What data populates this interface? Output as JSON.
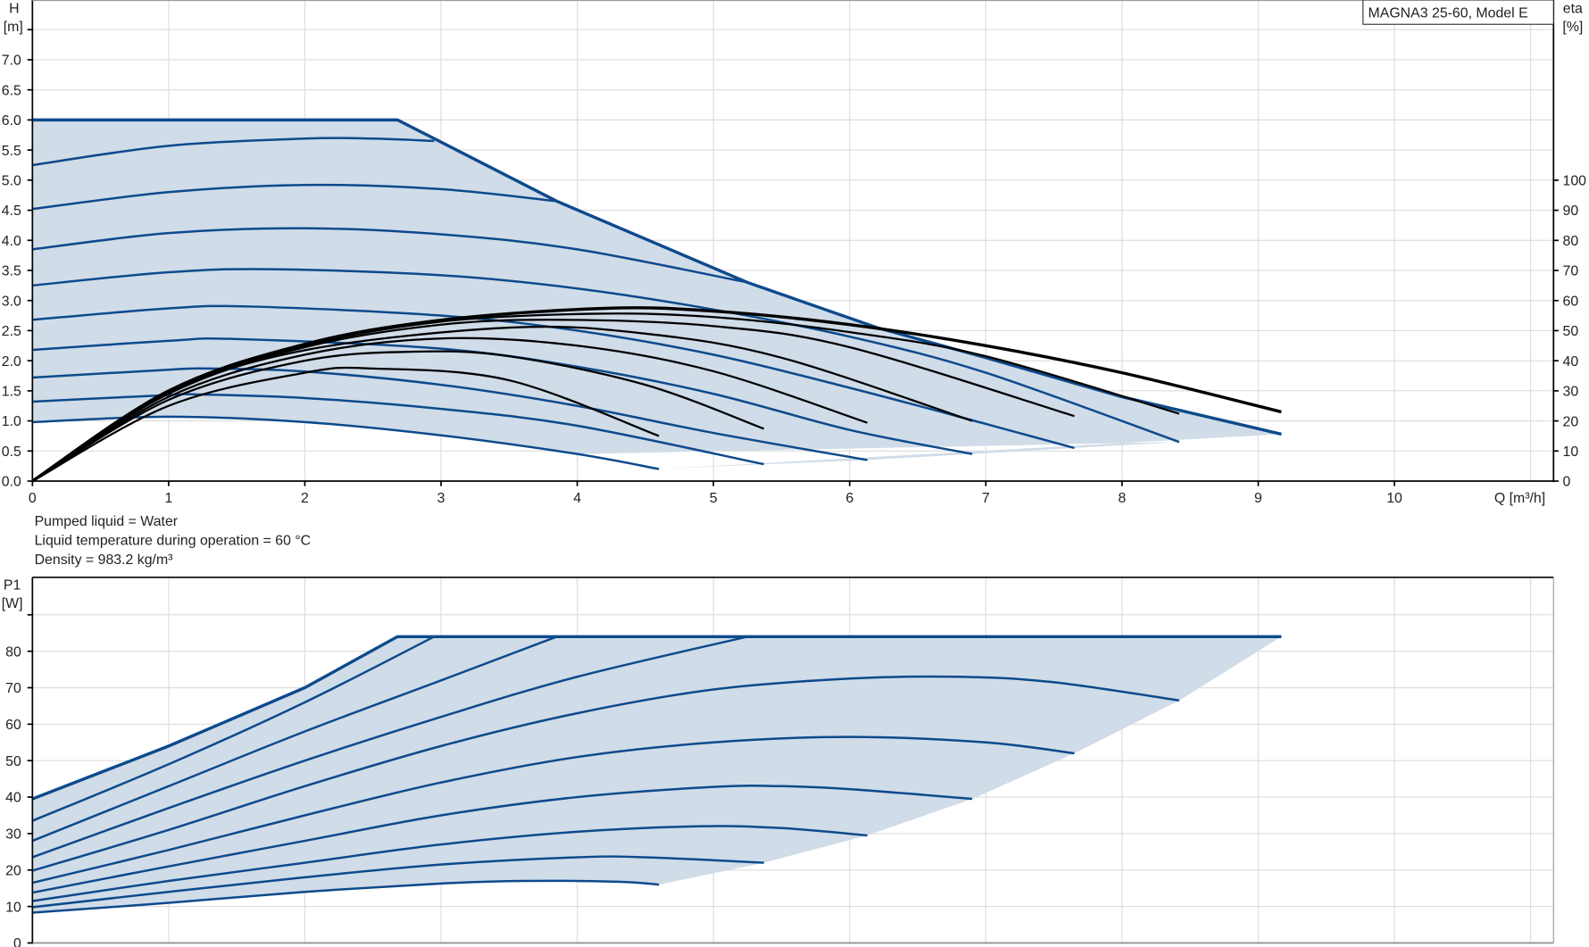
{
  "legend_box": "MAGNA3 25-60, Model E",
  "notes": [
    "Pumped liquid = Water",
    "Liquid temperature during operation = 60 °C",
    "Density = 983.2 kg/m³"
  ],
  "colors": {
    "curve": "#0d4a8c",
    "efficiency": "#000000",
    "area": "#d0dce8",
    "grid": "#dcdcdc"
  },
  "chart_data": [
    {
      "type": "line",
      "title": "",
      "xlabel": "Q [m³/h]",
      "ylabel": [
        "H",
        "[m]"
      ],
      "y2label": [
        "eta",
        "[%]"
      ],
      "xlim": [
        0,
        11.2
      ],
      "ylim": [
        0,
        7.9
      ],
      "y2lim": [
        0,
        133
      ],
      "grid": true,
      "x_ticks": [
        "0",
        "1",
        "2",
        "3",
        "4",
        "5",
        "6",
        "7",
        "8",
        "9",
        "10"
      ],
      "y_ticks": [
        "0.0",
        "0.5",
        "1.0",
        "1.5",
        "2.0",
        "2.5",
        "3.0",
        "3.5",
        "4.0",
        "4.5",
        "5.0",
        "5.5",
        "6.0",
        "6.5",
        "7.0"
      ],
      "y2_ticks": [
        "0",
        "10",
        "20",
        "30",
        "40",
        "50",
        "60",
        "70",
        "80",
        "90",
        "100"
      ],
      "max_curve": [
        [
          0,
          6
        ],
        [
          2.68,
          6
        ],
        [
          2.95,
          5.69
        ],
        [
          3.85,
          4.65
        ],
        [
          5.25,
          3.3
        ],
        [
          6.2,
          2.55
        ],
        [
          7,
          2.05
        ],
        [
          8,
          1.4
        ],
        [
          9.17,
          0.78
        ]
      ],
      "head_curves": [
        [
          [
            0,
            5.25
          ],
          [
            1,
            5.57
          ],
          [
            2,
            5.69
          ],
          [
            2.5,
            5.69
          ],
          [
            2.95,
            5.65
          ]
        ],
        [
          [
            0,
            4.52
          ],
          [
            1,
            4.8
          ],
          [
            2,
            4.92
          ],
          [
            3,
            4.85
          ],
          [
            3.85,
            4.65
          ]
        ],
        [
          [
            0,
            3.85
          ],
          [
            1,
            4.12
          ],
          [
            2,
            4.2
          ],
          [
            3,
            4.1
          ],
          [
            4,
            3.85
          ],
          [
            5.25,
            3.3
          ]
        ],
        [
          [
            0,
            3.25
          ],
          [
            1,
            3.47
          ],
          [
            1.75,
            3.52
          ],
          [
            3,
            3.42
          ],
          [
            4,
            3.2
          ],
          [
            5,
            2.85
          ],
          [
            6,
            2.4
          ],
          [
            7,
            1.8
          ],
          [
            8.42,
            0.65
          ]
        ],
        [
          [
            0,
            2.68
          ],
          [
            1,
            2.87
          ],
          [
            1.6,
            2.9
          ],
          [
            3,
            2.75
          ],
          [
            4,
            2.5
          ],
          [
            5,
            2.1
          ],
          [
            6,
            1.55
          ],
          [
            7,
            0.95
          ],
          [
            7.65,
            0.55
          ]
        ],
        [
          [
            0,
            2.18
          ],
          [
            1,
            2.33
          ],
          [
            1.5,
            2.36
          ],
          [
            3,
            2.2
          ],
          [
            4,
            1.9
          ],
          [
            5,
            1.45
          ],
          [
            6,
            0.85
          ],
          [
            6.9,
            0.45
          ]
        ],
        [
          [
            0,
            1.72
          ],
          [
            1,
            1.85
          ],
          [
            1.3,
            1.87
          ],
          [
            2,
            1.82
          ],
          [
            3,
            1.6
          ],
          [
            4,
            1.25
          ],
          [
            5,
            0.8
          ],
          [
            6.13,
            0.35
          ]
        ],
        [
          [
            0,
            1.32
          ],
          [
            1,
            1.43
          ],
          [
            1.2,
            1.44
          ],
          [
            2,
            1.38
          ],
          [
            3,
            1.2
          ],
          [
            4,
            0.92
          ],
          [
            5.37,
            0.28
          ]
        ],
        [
          [
            0,
            0.98
          ],
          [
            1,
            1.07
          ],
          [
            2,
            0.98
          ],
          [
            3,
            0.76
          ],
          [
            4,
            0.45
          ],
          [
            4.6,
            0.2
          ]
        ]
      ],
      "efficiency_curves": [
        [
          [
            0,
            0
          ],
          [
            1,
            30
          ],
          [
            2,
            45.5
          ],
          [
            3,
            53.5
          ],
          [
            4.2,
            57.4
          ],
          [
            5,
            56.5
          ],
          [
            6,
            52
          ],
          [
            7,
            45
          ],
          [
            8,
            36
          ],
          [
            9.17,
            23
          ]
        ],
        [
          [
            0,
            0
          ],
          [
            1,
            30
          ],
          [
            2,
            45
          ],
          [
            3,
            53
          ],
          [
            4.1,
            55.6
          ],
          [
            5,
            54.5
          ],
          [
            6,
            49.5
          ],
          [
            7,
            41.5
          ],
          [
            8.42,
            22.4
          ]
        ],
        [
          [
            0,
            0
          ],
          [
            1,
            29.5
          ],
          [
            2,
            44.5
          ],
          [
            3,
            52
          ],
          [
            3.9,
            53.6
          ],
          [
            5,
            51.5
          ],
          [
            6,
            44.5
          ],
          [
            7.65,
            21.6
          ]
        ],
        [
          [
            0,
            0
          ],
          [
            1,
            29
          ],
          [
            2,
            43.5
          ],
          [
            3.5,
            51
          ],
          [
            4.5,
            49
          ],
          [
            5.5,
            41
          ],
          [
            6.9,
            20
          ]
        ],
        [
          [
            0,
            0
          ],
          [
            1,
            28
          ],
          [
            2,
            42
          ],
          [
            3,
            47.4
          ],
          [
            4,
            45
          ],
          [
            5,
            36.5
          ],
          [
            6.13,
            19.4
          ]
        ],
        [
          [
            0,
            0
          ],
          [
            1,
            27
          ],
          [
            2,
            40
          ],
          [
            2.8,
            43
          ],
          [
            3.5,
            41.5
          ],
          [
            4.5,
            32
          ],
          [
            5.37,
            17.4
          ]
        ],
        [
          [
            0,
            0
          ],
          [
            1,
            25
          ],
          [
            2,
            36
          ],
          [
            2.5,
            37.4
          ],
          [
            3.5,
            33.5
          ],
          [
            4.6,
            15
          ]
        ]
      ]
    },
    {
      "type": "line",
      "title": "",
      "ylabel": [
        "P1",
        "[W]"
      ],
      "xlim": [
        0,
        11.2
      ],
      "ylim": [
        0,
        100
      ],
      "grid": true,
      "y_ticks": [
        "0",
        "10",
        "20",
        "30",
        "40",
        "50",
        "60",
        "70",
        "80"
      ],
      "max_curve": [
        [
          0,
          39.5
        ],
        [
          1,
          54
        ],
        [
          2,
          70
        ],
        [
          2.68,
          84
        ],
        [
          9.17,
          84
        ]
      ],
      "power_curves": [
        [
          [
            0,
            33.5
          ],
          [
            1,
            49
          ],
          [
            2,
            66
          ],
          [
            2.95,
            84
          ]
        ],
        [
          [
            0,
            28
          ],
          [
            1,
            43
          ],
          [
            2,
            58
          ],
          [
            3,
            72
          ],
          [
            3.85,
            84
          ]
        ],
        [
          [
            0,
            23.5
          ],
          [
            1,
            37
          ],
          [
            2,
            50
          ],
          [
            3,
            62
          ],
          [
            4,
            73
          ],
          [
            5.25,
            84
          ]
        ],
        [
          [
            0,
            19.8
          ],
          [
            1,
            31
          ],
          [
            2,
            43
          ],
          [
            3,
            54
          ],
          [
            4,
            63
          ],
          [
            5,
            69.5
          ],
          [
            6,
            72.5
          ],
          [
            6.8,
            73
          ],
          [
            7.5,
            71.5
          ],
          [
            8.42,
            66.5
          ]
        ],
        [
          [
            0,
            16.5
          ],
          [
            1,
            25.5
          ],
          [
            2,
            35
          ],
          [
            3,
            44
          ],
          [
            4,
            51
          ],
          [
            5,
            55
          ],
          [
            6,
            56.5
          ],
          [
            7,
            55
          ],
          [
            7.65,
            52
          ]
        ],
        [
          [
            0,
            13.8
          ],
          [
            1,
            21
          ],
          [
            2,
            28
          ],
          [
            3,
            35
          ],
          [
            4,
            40
          ],
          [
            5,
            42.8
          ],
          [
            5.5,
            43
          ],
          [
            6,
            42.2
          ],
          [
            6.9,
            39.5
          ]
        ],
        [
          [
            0,
            11.5
          ],
          [
            1,
            17
          ],
          [
            2,
            22
          ],
          [
            3,
            27
          ],
          [
            4,
            30.5
          ],
          [
            4.9,
            32
          ],
          [
            5.5,
            31.5
          ],
          [
            6.13,
            29.5
          ]
        ],
        [
          [
            0,
            9.8
          ],
          [
            1,
            14
          ],
          [
            2,
            18
          ],
          [
            3,
            21.5
          ],
          [
            4,
            23.5
          ],
          [
            4.5,
            23.5
          ],
          [
            5.37,
            22
          ]
        ],
        [
          [
            0,
            8.3
          ],
          [
            1,
            11
          ],
          [
            2,
            14
          ],
          [
            3,
            16.3
          ],
          [
            3.6,
            17
          ],
          [
            4.3,
            16.8
          ],
          [
            4.6,
            16
          ]
        ]
      ]
    }
  ]
}
